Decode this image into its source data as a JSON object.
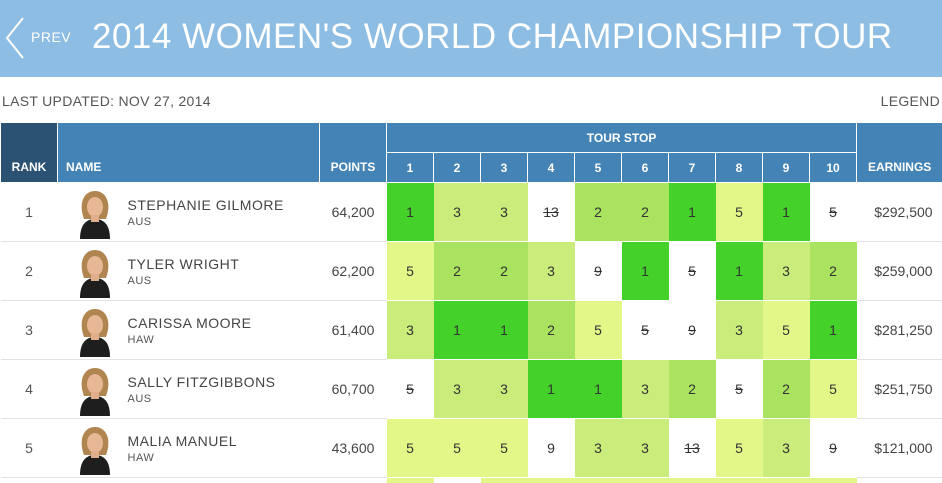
{
  "header": {
    "prev_label": "PREV",
    "title": "2014 WOMEN'S WORLD CHAMPIONSHIP TOUR",
    "bar_color": "#8dbde3"
  },
  "meta": {
    "last_updated": "LAST UPDATED: NOV 27, 2014",
    "legend_label": "LEGEND"
  },
  "table": {
    "headers": {
      "rank": "RANK",
      "name": "NAME",
      "points": "POINTS",
      "tour_stop": "TOUR STOP",
      "earnings": "EARNINGS",
      "stops": [
        "1",
        "2",
        "3",
        "4",
        "5",
        "6",
        "7",
        "8",
        "9",
        "10"
      ]
    },
    "colors": {
      "header": "#4383b5",
      "rank_header": "#2b5173",
      "place_1": "#44d12a",
      "place_2": "#a9e35f",
      "place_3": "#caec7a",
      "place_5": "#e2f788",
      "place_9": "#ffffff",
      "place_13": "#ffffff"
    },
    "rows": [
      {
        "rank": "1",
        "name": "STEPHANIE GILMORE",
        "country": "AUS",
        "points": "64,200",
        "earnings": "$292,500",
        "results": [
          {
            "v": "1",
            "dropped": false
          },
          {
            "v": "3",
            "dropped": false
          },
          {
            "v": "3",
            "dropped": false
          },
          {
            "v": "13",
            "dropped": true
          },
          {
            "v": "2",
            "dropped": false
          },
          {
            "v": "2",
            "dropped": false
          },
          {
            "v": "1",
            "dropped": false
          },
          {
            "v": "5",
            "dropped": false
          },
          {
            "v": "1",
            "dropped": false
          },
          {
            "v": "5",
            "dropped": true
          }
        ]
      },
      {
        "rank": "2",
        "name": "TYLER WRIGHT",
        "country": "AUS",
        "points": "62,200",
        "earnings": "$259,000",
        "results": [
          {
            "v": "5",
            "dropped": false
          },
          {
            "v": "2",
            "dropped": false
          },
          {
            "v": "2",
            "dropped": false
          },
          {
            "v": "3",
            "dropped": false
          },
          {
            "v": "9",
            "dropped": true
          },
          {
            "v": "1",
            "dropped": false
          },
          {
            "v": "5",
            "dropped": true
          },
          {
            "v": "1",
            "dropped": false
          },
          {
            "v": "3",
            "dropped": false
          },
          {
            "v": "2",
            "dropped": false
          }
        ]
      },
      {
        "rank": "3",
        "name": "CARISSA MOORE",
        "country": "HAW",
        "points": "61,400",
        "earnings": "$281,250",
        "results": [
          {
            "v": "3",
            "dropped": false
          },
          {
            "v": "1",
            "dropped": false
          },
          {
            "v": "1",
            "dropped": false
          },
          {
            "v": "2",
            "dropped": false
          },
          {
            "v": "5",
            "dropped": false
          },
          {
            "v": "5",
            "dropped": true
          },
          {
            "v": "9",
            "dropped": true
          },
          {
            "v": "3",
            "dropped": false
          },
          {
            "v": "5",
            "dropped": false
          },
          {
            "v": "1",
            "dropped": false
          }
        ]
      },
      {
        "rank": "4",
        "name": "SALLY FITZGIBBONS",
        "country": "AUS",
        "points": "60,700",
        "earnings": "$251,750",
        "results": [
          {
            "v": "5",
            "dropped": true
          },
          {
            "v": "3",
            "dropped": false
          },
          {
            "v": "3",
            "dropped": false
          },
          {
            "v": "1",
            "dropped": false
          },
          {
            "v": "1",
            "dropped": false
          },
          {
            "v": "3",
            "dropped": false
          },
          {
            "v": "2",
            "dropped": false
          },
          {
            "v": "5",
            "dropped": true
          },
          {
            "v": "2",
            "dropped": false
          },
          {
            "v": "5",
            "dropped": false
          }
        ]
      },
      {
        "rank": "5",
        "name": "MALIA MANUEL",
        "country": "HAW",
        "points": "43,600",
        "earnings": "$121,000",
        "results": [
          {
            "v": "5",
            "dropped": false
          },
          {
            "v": "5",
            "dropped": false
          },
          {
            "v": "5",
            "dropped": false
          },
          {
            "v": "9",
            "dropped": false
          },
          {
            "v": "3",
            "dropped": false
          },
          {
            "v": "3",
            "dropped": false
          },
          {
            "v": "13",
            "dropped": true
          },
          {
            "v": "5",
            "dropped": false
          },
          {
            "v": "3",
            "dropped": false
          },
          {
            "v": "9",
            "dropped": true
          }
        ]
      }
    ]
  },
  "icons": {
    "prev": "chevron-left-icon",
    "avatar": "surfer-portrait"
  }
}
